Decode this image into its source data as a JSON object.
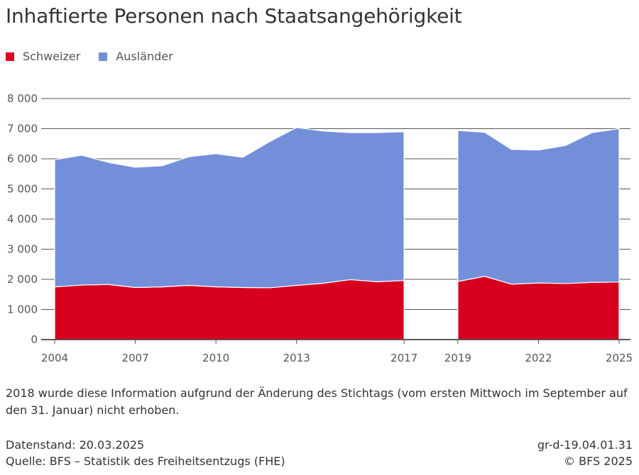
{
  "title": "Inhaftierte Personen nach Staatsangehörigkeit",
  "legend": [
    {
      "label": "Schweizer",
      "color": "#d7001e"
    },
    {
      "label": "Ausländer",
      "color": "#738fd9"
    }
  ],
  "chart_data": {
    "type": "area",
    "stacked": true,
    "title": "Inhaftierte Personen nach Staatsangehörigkeit",
    "xlabel": "",
    "ylabel": "",
    "ylim": [
      0,
      8000
    ],
    "yticks": [
      0,
      1000,
      2000,
      3000,
      4000,
      5000,
      6000,
      7000,
      8000
    ],
    "ytick_labels": [
      "0",
      "1 000",
      "2 000",
      "3 000",
      "4 000",
      "5 000",
      "6 000",
      "7 000",
      "8 000"
    ],
    "xlim": [
      2004,
      2025
    ],
    "xticks": [
      2004,
      2007,
      2010,
      2013,
      2017,
      2019,
      2022,
      2025
    ],
    "xtick_labels": [
      "2004",
      "2007",
      "2010",
      "2013",
      "2017",
      "2019",
      "2022",
      "2025"
    ],
    "grid": true,
    "segments": [
      {
        "x": [
          2004,
          2005,
          2006,
          2007,
          2008,
          2009,
          2010,
          2011,
          2012,
          2013,
          2014,
          2015,
          2016,
          2017
        ],
        "series": [
          {
            "name": "Schweizer",
            "color": "#d7001e",
            "values": [
              1750,
              1810,
              1830,
              1730,
              1750,
              1800,
              1750,
              1730,
              1720,
              1800,
              1870,
              1990,
              1920,
              1960
            ]
          },
          {
            "name": "Ausländer",
            "color": "#738fd9",
            "values": [
              4220,
              4310,
              4050,
              3990,
              4020,
              4270,
              4420,
              4320,
              4850,
              5240,
              5050,
              4880,
              4950,
              4940
            ]
          }
        ]
      },
      {
        "x": [
          2019,
          2020,
          2021,
          2022,
          2023,
          2024,
          2025
        ],
        "series": [
          {
            "name": "Schweizer",
            "color": "#d7001e",
            "values": [
              1930,
              2100,
              1840,
              1880,
              1860,
              1900,
              1910
            ]
          },
          {
            "name": "Ausländer",
            "color": "#738fd9",
            "values": [
              5010,
              4780,
              4470,
              4410,
              4580,
              4970,
              5090
            ]
          }
        ]
      }
    ],
    "annotations": []
  },
  "note": "2018 wurde diese Information aufgrund der Änderung des Stichtags (vom ersten Mittwoch im September auf den 31. Januar) nicht erhoben.",
  "footer": {
    "datenstand": "Datenstand: 20.03.2025",
    "quelle": "Quelle: BFS – Statistik des Freiheitsentzugs (FHE)",
    "code": "gr-d-19.04.01.31",
    "copyright": "© BFS 2025"
  }
}
